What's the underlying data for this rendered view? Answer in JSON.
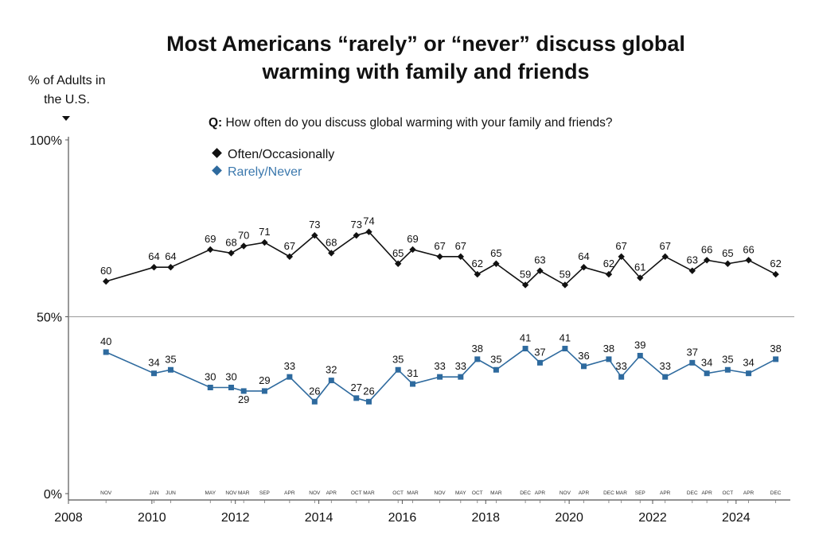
{
  "title_line1": "Most Americans “rarely” or “never” discuss global",
  "title_line2": "warming with family and friends",
  "ylabel_line1": "% of Adults in",
  "ylabel_line2": "the U.S.",
  "question_prefix": "Q:",
  "question_text": "How often do you discuss global warming with your family and friends?",
  "colors": {
    "often": "#111111",
    "rarely": "#2e6a9e",
    "rarely_label": "#3b78ad",
    "axis": "#555555",
    "grid": "#9a9a9a"
  },
  "chart_data": {
    "type": "line",
    "ylabel": "% of Adults in the U.S.",
    "ylim": [
      0,
      100
    ],
    "y_ticks": [
      "0%",
      "50%",
      "100%"
    ],
    "xlim": [
      2008,
      2025.3
    ],
    "x_ticks": [
      "2008",
      "2010",
      "2012",
      "2014",
      "2016",
      "2018",
      "2020",
      "2022",
      "2024"
    ],
    "grid": "horizontal line at 50%",
    "legend_position": "top-left",
    "x": [
      2008.9,
      2010.05,
      2010.45,
      2011.4,
      2011.9,
      2012.2,
      2012.7,
      2013.3,
      2013.9,
      2014.3,
      2014.9,
      2015.2,
      2015.9,
      2016.25,
      2016.9,
      2017.4,
      2017.8,
      2018.25,
      2018.95,
      2019.3,
      2019.9,
      2020.35,
      2020.95,
      2021.25,
      2021.7,
      2022.3,
      2022.95,
      2023.3,
      2023.8,
      2024.3,
      2024.95
    ],
    "month_labels": [
      "NOV",
      "JAN",
      "JUN",
      "MAY",
      "NOV",
      "MAR",
      "SEP",
      "APR",
      "NOV",
      "APR",
      "OCT",
      "MAR",
      "OCT",
      "MAR",
      "NOV",
      "MAY",
      "OCT",
      "MAR",
      "DEC",
      "APR",
      "NOV",
      "APR",
      "DEC",
      "MAR",
      "SEP",
      "APR",
      "DEC",
      "APR",
      "OCT",
      "APR",
      "DEC"
    ],
    "series": [
      {
        "name": "Often/Occasionally",
        "values": [
          60,
          64,
          64,
          69,
          68,
          70,
          71,
          67,
          73,
          68,
          73,
          74,
          65,
          69,
          67,
          67,
          62,
          65,
          59,
          63,
          59,
          64,
          62,
          67,
          61,
          67,
          63,
          66,
          65,
          66,
          62
        ]
      },
      {
        "name": "Rarely/Never",
        "values": [
          40,
          34,
          35,
          30,
          30,
          29,
          29,
          33,
          26,
          32,
          27,
          26,
          35,
          31,
          33,
          33,
          38,
          35,
          41,
          37,
          41,
          36,
          38,
          33,
          39,
          33,
          37,
          34,
          35,
          34,
          38
        ]
      }
    ]
  }
}
